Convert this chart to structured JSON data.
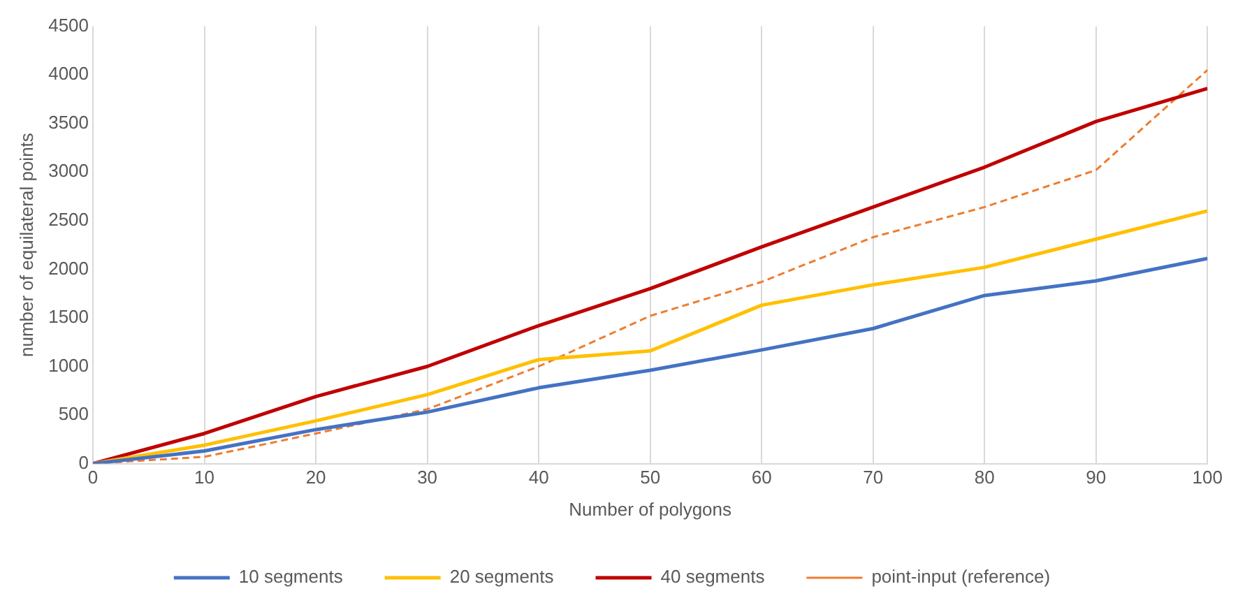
{
  "chart_data": {
    "type": "line",
    "xlabel": "Number of polygons",
    "ylabel": "number of equilateral points",
    "x": [
      0,
      10,
      20,
      30,
      40,
      50,
      60,
      70,
      80,
      90,
      100
    ],
    "xlim": [
      0,
      100
    ],
    "xticks": [
      0,
      10,
      20,
      30,
      40,
      50,
      60,
      70,
      80,
      90,
      100
    ],
    "ylim": [
      0,
      4500
    ],
    "yticks": [
      0,
      500,
      1000,
      1500,
      2000,
      2500,
      3000,
      3500,
      4000,
      4500
    ],
    "grid": "x",
    "legend": "bottom",
    "marker": "none",
    "series": [
      {
        "name": "10 segments",
        "color": "#4472c4",
        "values": [
          0,
          130,
          350,
          530,
          780,
          960,
          1170,
          1390,
          1730,
          1880,
          2110
        ]
      },
      {
        "name": "20 segments",
        "color": "#ffc000",
        "values": [
          0,
          190,
          440,
          710,
          1070,
          1160,
          1630,
          1840,
          2020,
          2310,
          2600
        ]
      },
      {
        "name": "40 segments",
        "color": "#c00000",
        "values": [
          0,
          310,
          690,
          1000,
          1420,
          1800,
          2230,
          2640,
          3050,
          3520,
          3860
        ]
      },
      {
        "name": "point-input (reference)",
        "color": "#ed7d31",
        "line_style": "dashed",
        "values": [
          0,
          70,
          310,
          560,
          1000,
          1520,
          1870,
          2330,
          2640,
          3020,
          4050
        ]
      }
    ]
  }
}
